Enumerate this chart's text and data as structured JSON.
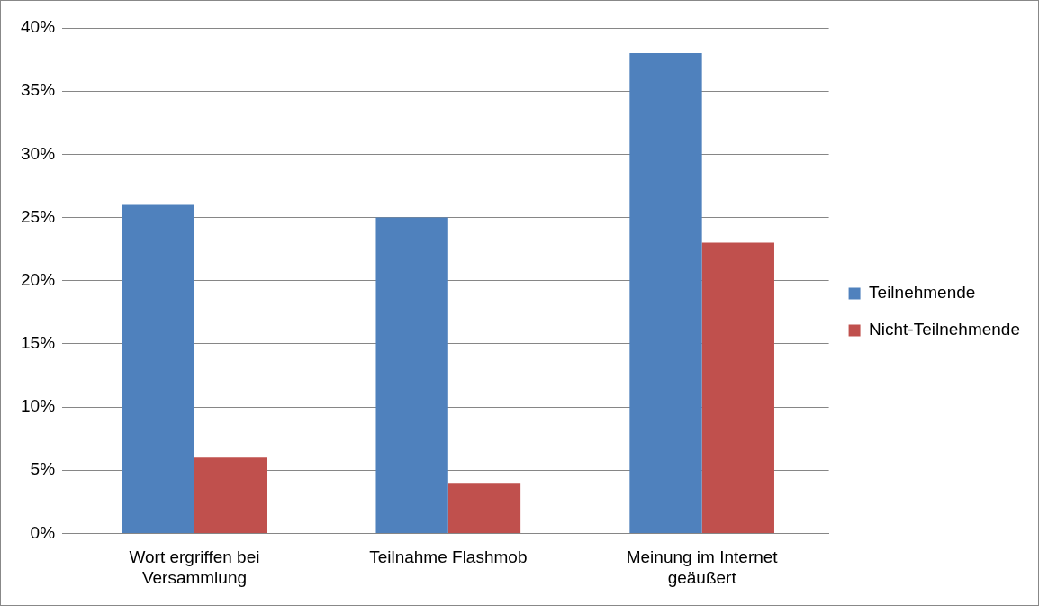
{
  "chart_data": {
    "type": "bar",
    "categories": [
      "Wort ergriffen bei Versammlung",
      "Teilnahme Flashmob",
      "Meinung im Internet geäußert"
    ],
    "series": [
      {
        "name": "Teilnehmende",
        "color": "#4f81bd",
        "values": [
          26,
          25,
          38
        ]
      },
      {
        "name": "Nicht-Teilnehmende",
        "color": "#c0504d",
        "values": [
          6,
          4,
          23
        ]
      }
    ],
    "ylim": [
      0,
      40
    ],
    "yticks": [
      {
        "value": 0,
        "label": "0%"
      },
      {
        "value": 5,
        "label": "5%"
      },
      {
        "value": 10,
        "label": "10%"
      },
      {
        "value": 15,
        "label": "15%"
      },
      {
        "value": 20,
        "label": "20%"
      },
      {
        "value": 25,
        "label": "25%"
      },
      {
        "value": 30,
        "label": "30%"
      },
      {
        "value": 35,
        "label": "35%"
      },
      {
        "value": 40,
        "label": "40%"
      }
    ],
    "grid": "y",
    "legend": "right"
  }
}
